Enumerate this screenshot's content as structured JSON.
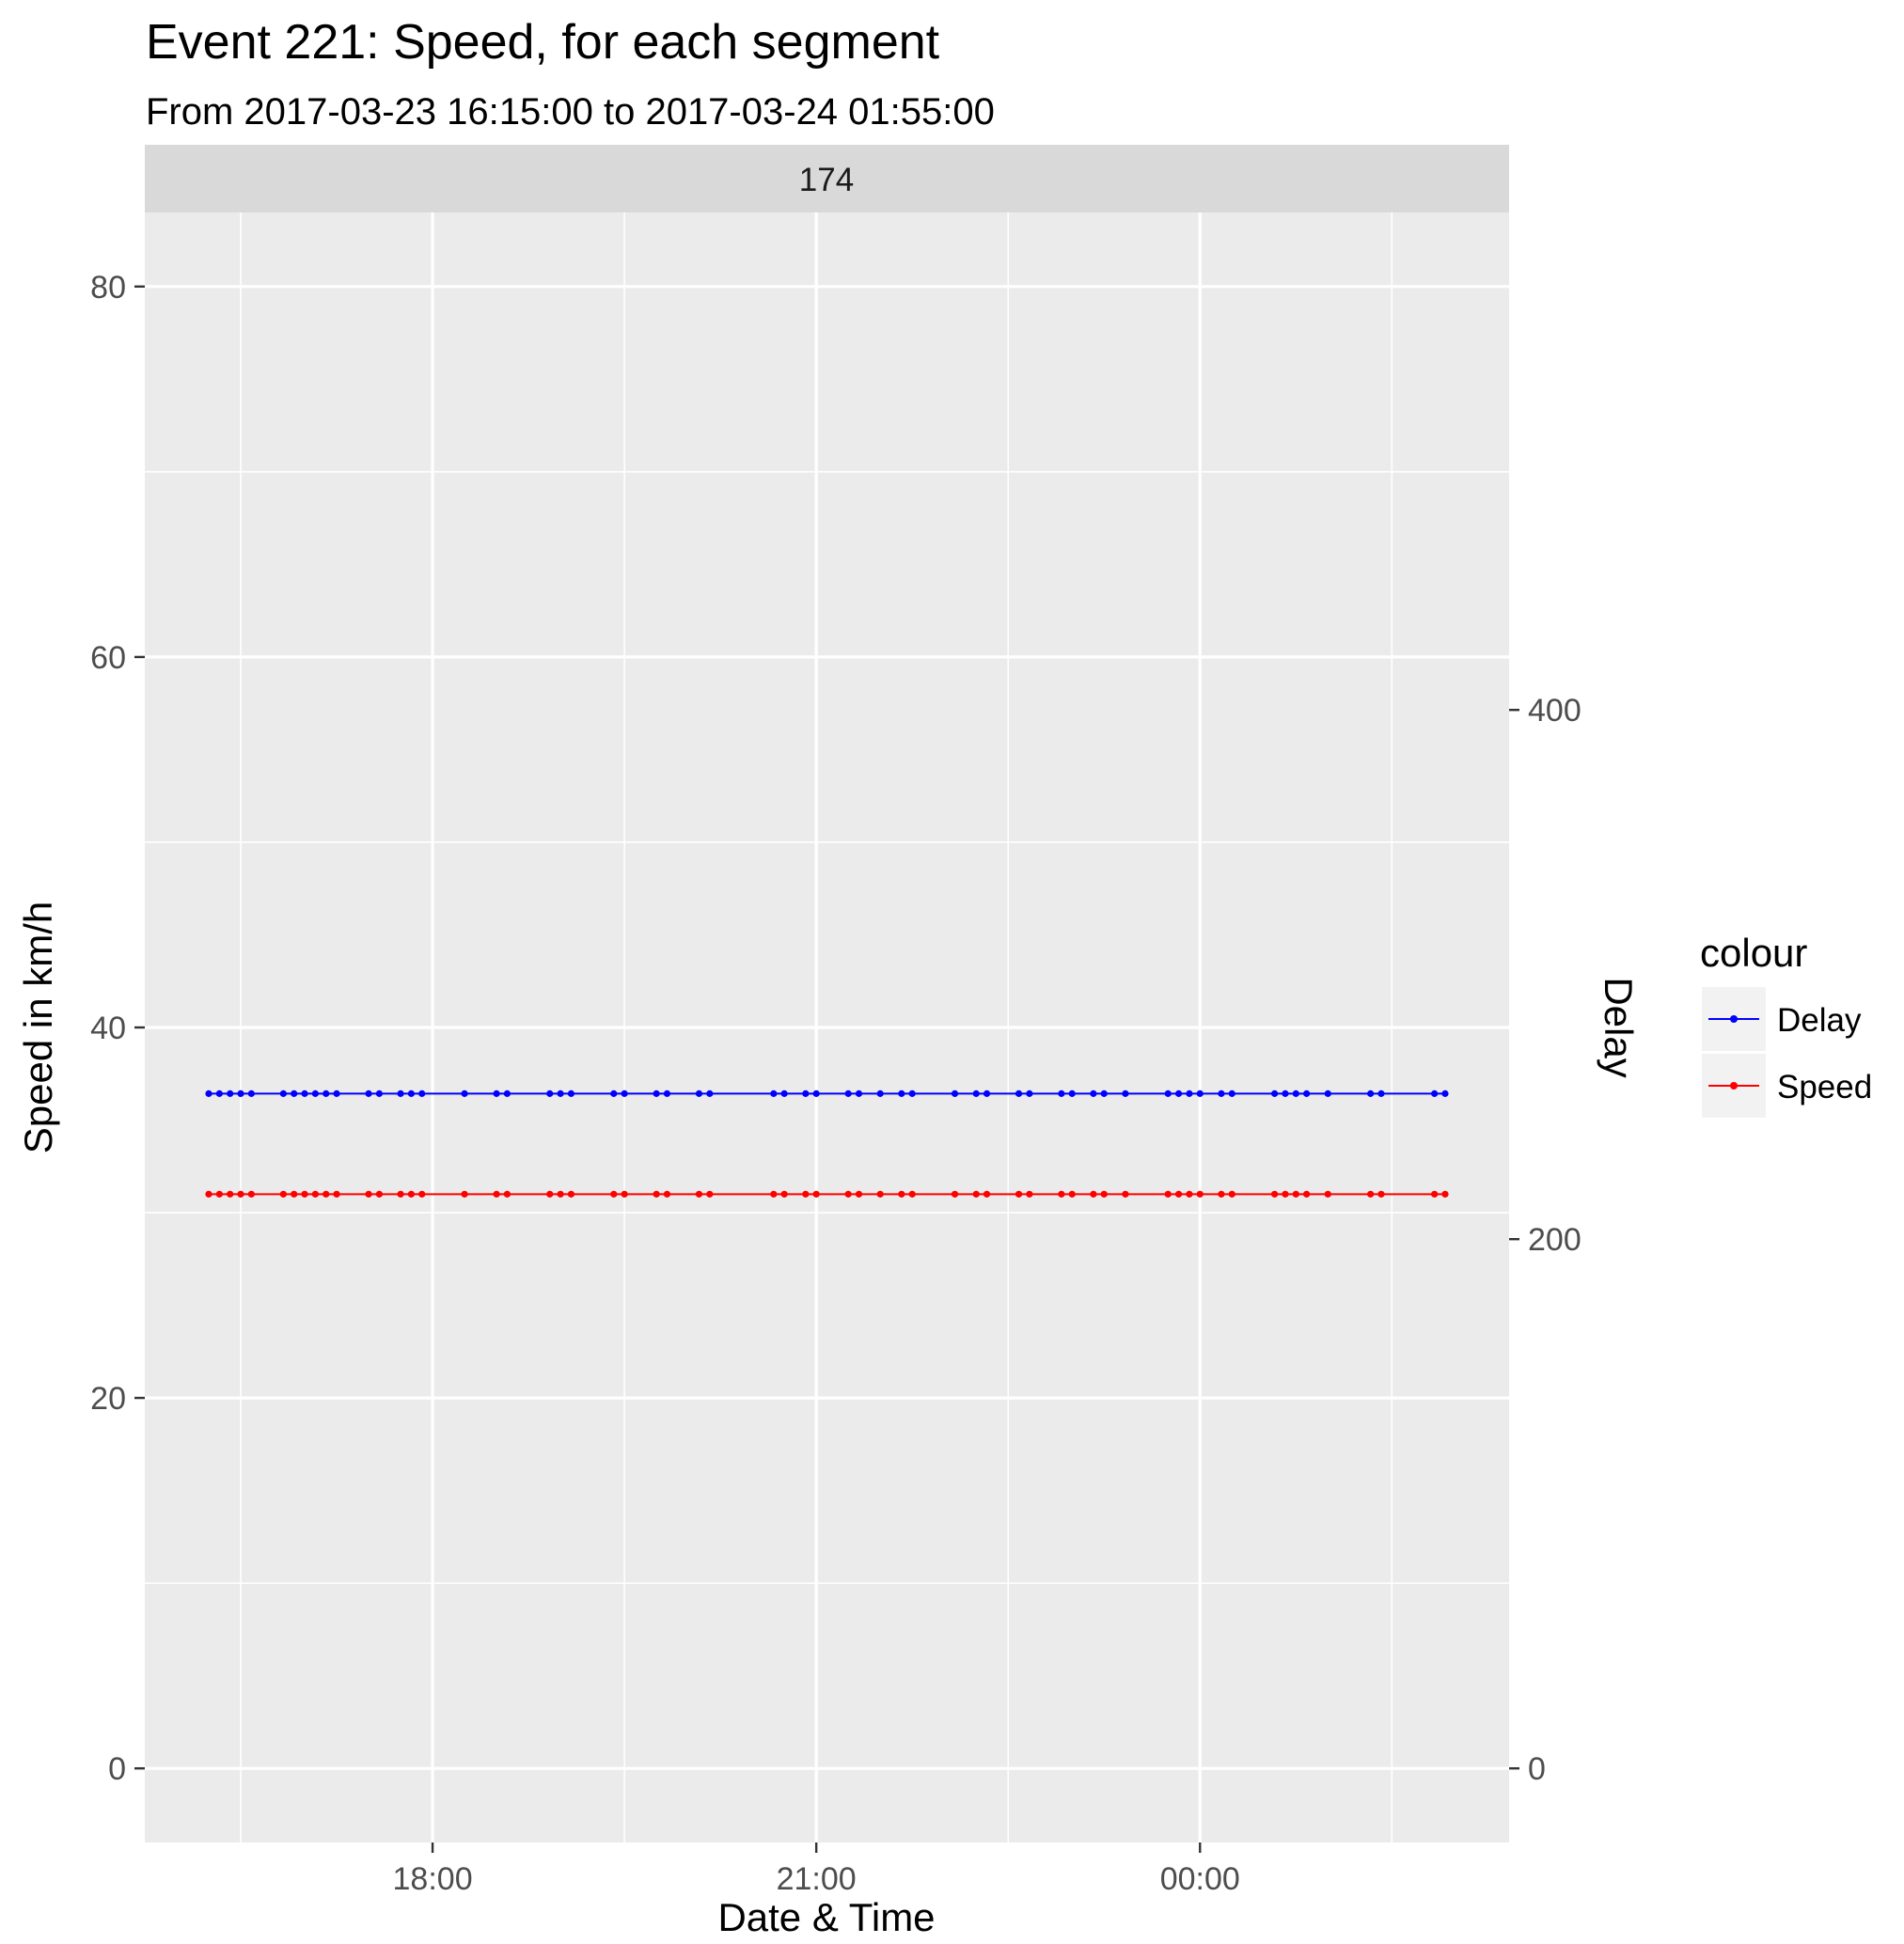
{
  "chart_data": {
    "type": "line",
    "title": "Event 221: Speed, for each segment",
    "subtitle": "From 2017-03-23 16:15:00 to 2017-03-24 01:55:00",
    "facet": "174",
    "xlabel": "Date & Time",
    "ylabel": "Speed in km/h",
    "y2label": "Delay",
    "x_ticks": [
      "18:00",
      "21:00",
      "00:00"
    ],
    "x_tick_times": [
      "2017-03-23 18:00",
      "2017-03-23 21:00",
      "2017-03-24 00:00"
    ],
    "xlim": [
      "2017-03-23 15:45",
      "2017-03-24 02:25"
    ],
    "ylim": [
      -4,
      84
    ],
    "y_ticks": [
      0,
      20,
      40,
      60,
      80
    ],
    "y2_ticks": [
      0,
      200,
      400
    ],
    "y2_per_y": 7,
    "grid": true,
    "legend": {
      "title": "colour",
      "position": "right"
    },
    "x": [
      "2017-03-23 16:15",
      "2017-03-23 16:20",
      "2017-03-23 16:25",
      "2017-03-23 16:30",
      "2017-03-23 16:35",
      "2017-03-23 16:50",
      "2017-03-23 16:55",
      "2017-03-23 17:00",
      "2017-03-23 17:05",
      "2017-03-23 17:10",
      "2017-03-23 17:15",
      "2017-03-23 17:30",
      "2017-03-23 17:35",
      "2017-03-23 17:45",
      "2017-03-23 17:50",
      "2017-03-23 17:55",
      "2017-03-23 18:15",
      "2017-03-23 18:30",
      "2017-03-23 18:35",
      "2017-03-23 18:55",
      "2017-03-23 19:00",
      "2017-03-23 19:05",
      "2017-03-23 19:25",
      "2017-03-23 19:30",
      "2017-03-23 19:45",
      "2017-03-23 19:50",
      "2017-03-23 20:05",
      "2017-03-23 20:10",
      "2017-03-23 20:40",
      "2017-03-23 20:45",
      "2017-03-23 20:55",
      "2017-03-23 21:00",
      "2017-03-23 21:15",
      "2017-03-23 21:20",
      "2017-03-23 21:30",
      "2017-03-23 21:40",
      "2017-03-23 21:45",
      "2017-03-23 22:05",
      "2017-03-23 22:15",
      "2017-03-23 22:20",
      "2017-03-23 22:35",
      "2017-03-23 22:40",
      "2017-03-23 22:55",
      "2017-03-23 23:00",
      "2017-03-23 23:10",
      "2017-03-23 23:15",
      "2017-03-23 23:25",
      "2017-03-23 23:45",
      "2017-03-23 23:50",
      "2017-03-23 23:55",
      "2017-03-24 00:00",
      "2017-03-24 00:10",
      "2017-03-24 00:15",
      "2017-03-24 00:35",
      "2017-03-24 00:40",
      "2017-03-24 00:45",
      "2017-03-24 00:50",
      "2017-03-24 01:00",
      "2017-03-24 01:20",
      "2017-03-24 01:25",
      "2017-03-24 01:50",
      "2017-03-24 01:55"
    ],
    "series": [
      {
        "name": "Delay",
        "color": "#0000ff",
        "axis": "right",
        "value": 255
      },
      {
        "name": "Speed",
        "color": "#ff0000",
        "axis": "left",
        "value": 31
      }
    ]
  }
}
